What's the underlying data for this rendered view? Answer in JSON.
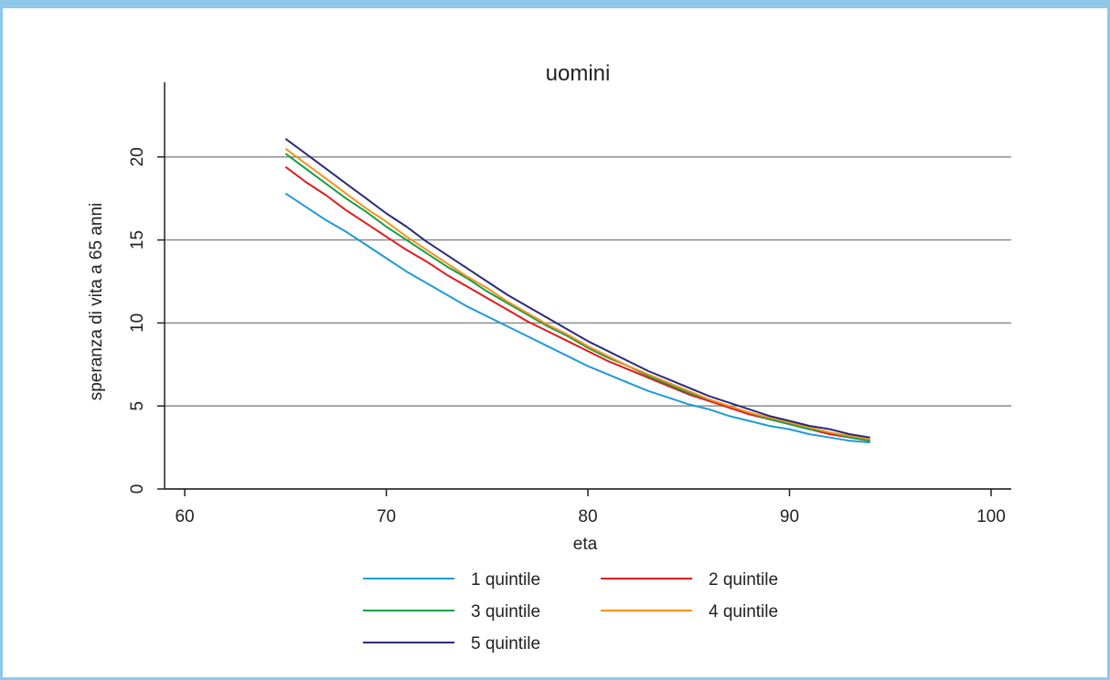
{
  "chart_data": {
    "type": "line",
    "title": "uomini",
    "xlabel": "eta",
    "ylabel": "speranza di vita a 65 anni",
    "xlim": [
      59,
      101
    ],
    "ylim": [
      0,
      24.5
    ],
    "xticks": [
      60,
      70,
      80,
      90,
      100
    ],
    "yticks": [
      0,
      5,
      10,
      15,
      20
    ],
    "grid": "horizontal",
    "legend_position": "bottom",
    "x": [
      65,
      66,
      67,
      68,
      69,
      70,
      71,
      72,
      73,
      74,
      75,
      76,
      77,
      78,
      79,
      80,
      81,
      82,
      83,
      84,
      85,
      86,
      87,
      88,
      89,
      90,
      91,
      92,
      93,
      94
    ],
    "series": [
      {
        "name": "1 quintile",
        "color": "#1f9ad6",
        "values": [
          17.8,
          17.0,
          16.2,
          15.5,
          14.7,
          13.9,
          13.1,
          12.4,
          11.7,
          11.0,
          10.4,
          9.8,
          9.2,
          8.6,
          8.0,
          7.4,
          6.9,
          6.4,
          5.9,
          5.5,
          5.1,
          4.8,
          4.4,
          4.1,
          3.8,
          3.6,
          3.3,
          3.1,
          2.9,
          2.8
        ]
      },
      {
        "name": "2 quintile",
        "color": "#e31a1c",
        "values": [
          19.4,
          18.5,
          17.7,
          16.8,
          16.0,
          15.2,
          14.4,
          13.7,
          12.9,
          12.2,
          11.5,
          10.8,
          10.1,
          9.5,
          8.9,
          8.3,
          7.7,
          7.2,
          6.7,
          6.2,
          5.7,
          5.3,
          4.9,
          4.5,
          4.2,
          3.9,
          3.6,
          3.3,
          3.1,
          2.9
        ]
      },
      {
        "name": "3 quintile",
        "color": "#13a046",
        "values": [
          20.2,
          19.3,
          18.4,
          17.5,
          16.7,
          15.8,
          15.0,
          14.2,
          13.4,
          12.7,
          11.9,
          11.2,
          10.5,
          9.8,
          9.2,
          8.5,
          7.9,
          7.4,
          6.8,
          6.3,
          5.8,
          5.4,
          5.0,
          4.6,
          4.2,
          3.9,
          3.6,
          3.4,
          3.1,
          2.9
        ]
      },
      {
        "name": "4 quintile",
        "color": "#f5921e",
        "values": [
          20.5,
          19.6,
          18.7,
          17.8,
          16.9,
          16.1,
          15.2,
          14.4,
          13.6,
          12.8,
          12.1,
          11.3,
          10.6,
          9.9,
          9.3,
          8.6,
          8.0,
          7.4,
          6.9,
          6.4,
          5.9,
          5.4,
          5.0,
          4.6,
          4.3,
          4.0,
          3.7,
          3.4,
          3.2,
          3.0
        ]
      },
      {
        "name": "5 quintile",
        "color": "#2b2a7e",
        "values": [
          21.1,
          20.2,
          19.3,
          18.4,
          17.5,
          16.6,
          15.8,
          14.9,
          14.1,
          13.3,
          12.5,
          11.7,
          11.0,
          10.3,
          9.6,
          8.9,
          8.3,
          7.7,
          7.1,
          6.6,
          6.1,
          5.6,
          5.2,
          4.8,
          4.4,
          4.1,
          3.8,
          3.6,
          3.3,
          3.1
        ]
      }
    ]
  }
}
